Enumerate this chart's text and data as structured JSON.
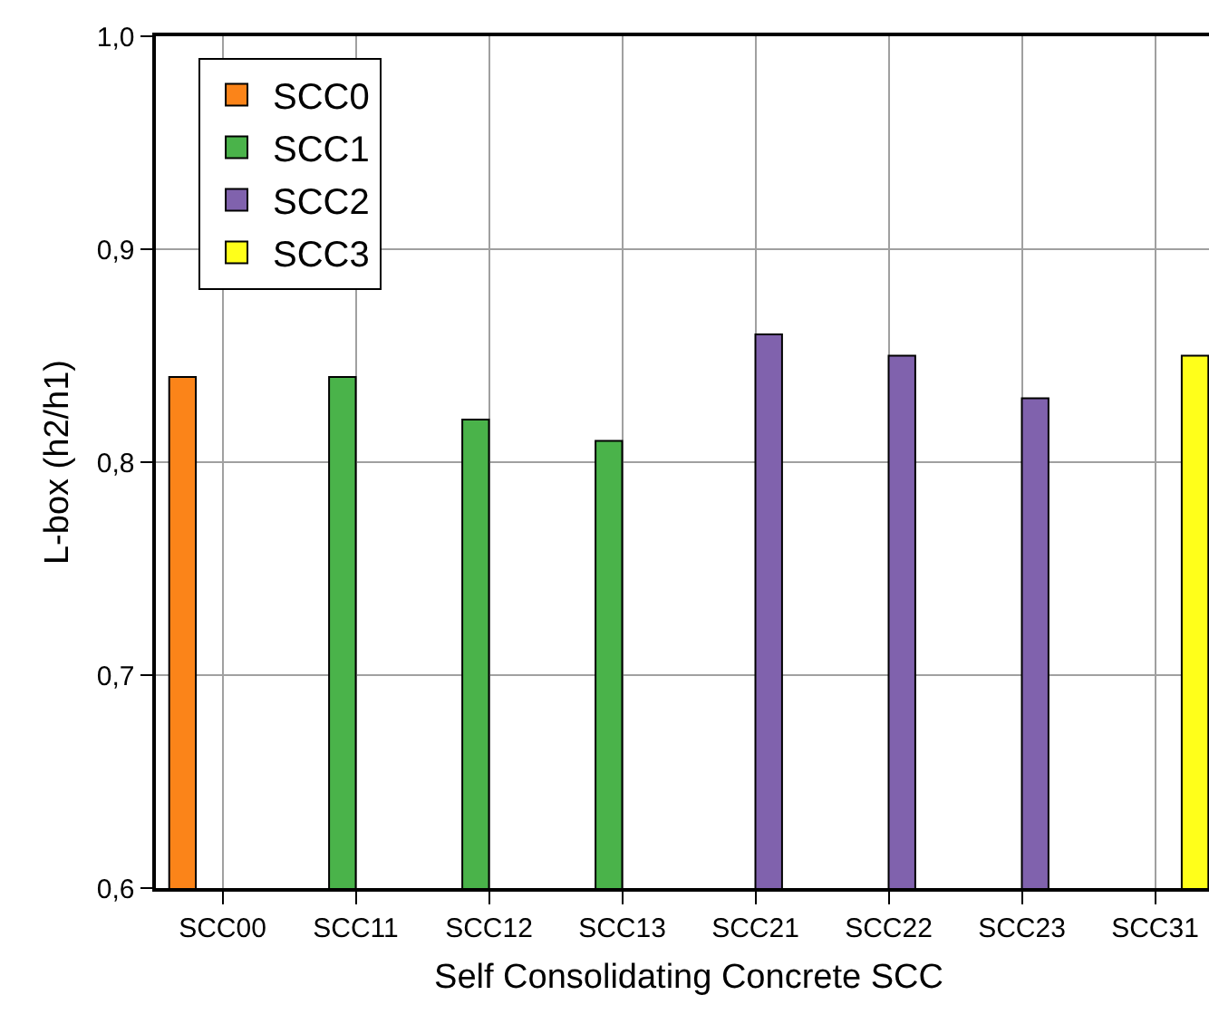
{
  "chart_data": {
    "type": "bar",
    "xlabel": "Self Consolidating Concrete SCC",
    "ylabel": "L-box (h2/h1)",
    "categories": [
      "SCC00",
      "SCC11",
      "SCC12",
      "SCC13",
      "SCC21",
      "SCC22",
      "SCC23",
      "SCC31"
    ],
    "series": [
      {
        "name": "SCC0",
        "color": "#fb8419",
        "values": [
          0.84,
          null,
          null,
          null,
          null,
          null,
          null,
          null
        ]
      },
      {
        "name": "SCC1",
        "color": "#4ab34a",
        "values": [
          null,
          0.84,
          0.82,
          0.81,
          null,
          null,
          null,
          null
        ]
      },
      {
        "name": "SCC2",
        "color": "#8062ad",
        "values": [
          null,
          null,
          null,
          null,
          0.86,
          0.85,
          0.83,
          null
        ]
      },
      {
        "name": "SCC3",
        "color": "#ffff1a",
        "values": [
          null,
          null,
          null,
          null,
          null,
          null,
          null,
          0.85
        ]
      }
    ],
    "ylim": [
      0.6,
      1.0
    ],
    "yticks": [
      {
        "value": 0.6,
        "label": "0,6"
      },
      {
        "value": 0.7,
        "label": "0,7"
      },
      {
        "value": 0.8,
        "label": "0,8"
      },
      {
        "value": 0.9,
        "label": "0,9"
      },
      {
        "value": 1.0,
        "label": "1,0"
      }
    ],
    "grid": true,
    "legend": "top left"
  }
}
